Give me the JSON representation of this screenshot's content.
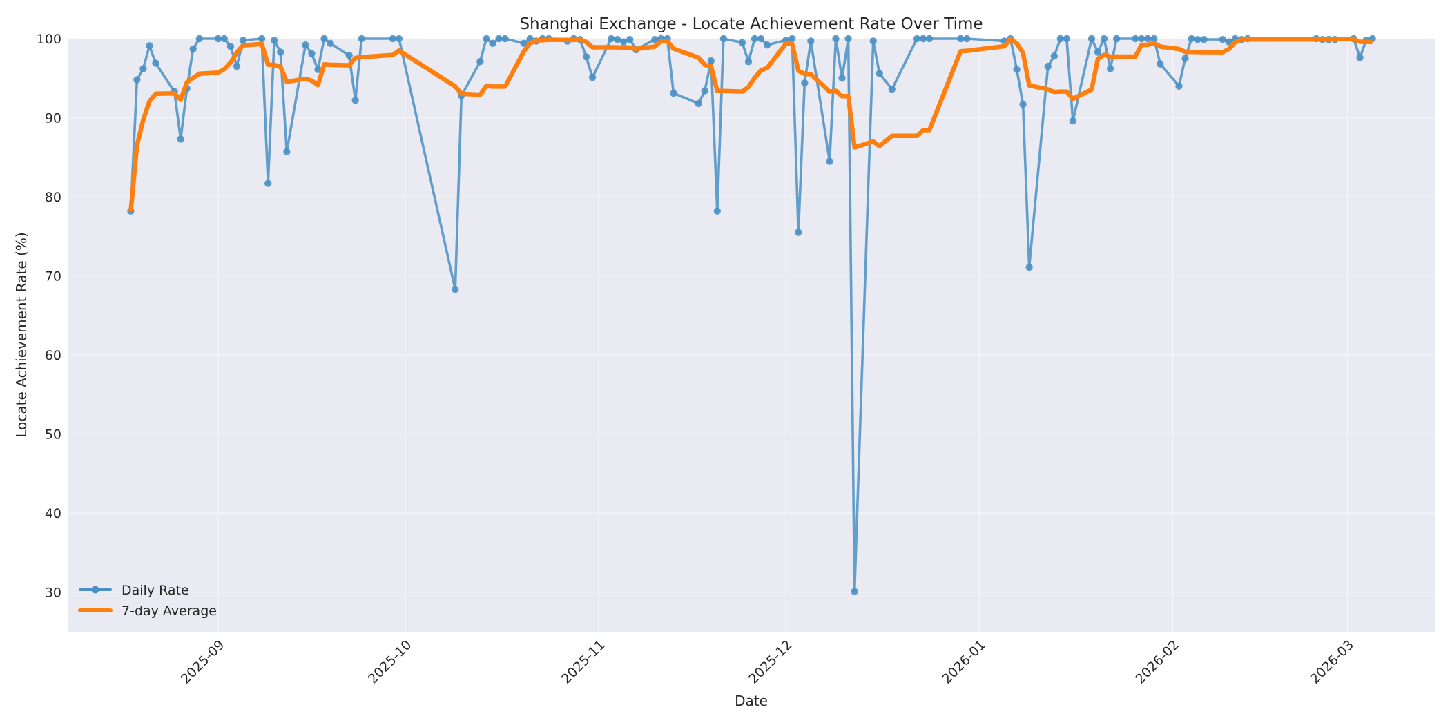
{
  "chart_data": {
    "type": "line",
    "title": "Shanghai Exchange - Locate Achievement Rate Over Time",
    "xlabel": "Date",
    "ylabel": "Locate Achievement Rate (%)",
    "ylim": [
      25,
      100
    ],
    "xlim": [
      "2025-08-08",
      "2026-03-15"
    ],
    "yticks": [
      30,
      40,
      50,
      60,
      70,
      80,
      90,
      100
    ],
    "xticks": [
      {
        "date": "2025-09-01",
        "label": "2025-09"
      },
      {
        "date": "2025-10-01",
        "label": "2025-10"
      },
      {
        "date": "2025-11-01",
        "label": "2025-11"
      },
      {
        "date": "2025-12-01",
        "label": "2025-12"
      },
      {
        "date": "2026-01-01",
        "label": "2026-01"
      },
      {
        "date": "2026-02-01",
        "label": "2026-02"
      },
      {
        "date": "2026-03-01",
        "label": "2026-03"
      }
    ],
    "grid": true,
    "legend_position": "lower left",
    "colors": {
      "daily": "#4a90c4",
      "average": "#ff7f0e",
      "plot_bg": "#eaeaf2",
      "grid": "#f5f5f8",
      "text": "#262626"
    },
    "x": [
      "2025-08-18",
      "2025-08-19",
      "2025-08-20",
      "2025-08-21",
      "2025-08-22",
      "2025-08-25",
      "2025-08-26",
      "2025-08-27",
      "2025-08-28",
      "2025-08-29",
      "2025-09-01",
      "2025-09-02",
      "2025-09-03",
      "2025-09-04",
      "2025-09-05",
      "2025-09-08",
      "2025-09-09",
      "2025-09-10",
      "2025-09-11",
      "2025-09-12",
      "2025-09-15",
      "2025-09-16",
      "2025-09-17",
      "2025-09-18",
      "2025-09-19",
      "2025-09-22",
      "2025-09-23",
      "2025-09-24",
      "2025-09-29",
      "2025-09-30",
      "2025-10-09",
      "2025-10-10",
      "2025-10-13",
      "2025-10-14",
      "2025-10-15",
      "2025-10-16",
      "2025-10-17",
      "2025-10-20",
      "2025-10-21",
      "2025-10-22",
      "2025-10-23",
      "2025-10-24",
      "2025-10-27",
      "2025-10-28",
      "2025-10-29",
      "2025-10-30",
      "2025-10-31",
      "2025-11-03",
      "2025-11-04",
      "2025-11-05",
      "2025-11-06",
      "2025-11-07",
      "2025-11-10",
      "2025-11-11",
      "2025-11-12",
      "2025-11-13",
      "2025-11-17",
      "2025-11-18",
      "2025-11-19",
      "2025-11-20",
      "2025-11-21",
      "2025-11-24",
      "2025-11-25",
      "2025-11-26",
      "2025-11-27",
      "2025-11-28",
      "2025-12-01",
      "2025-12-02",
      "2025-12-03",
      "2025-12-04",
      "2025-12-05",
      "2025-12-08",
      "2025-12-09",
      "2025-12-10",
      "2025-12-11",
      "2025-12-12",
      "2025-12-15",
      "2025-12-16",
      "2025-12-18",
      "2025-12-22",
      "2025-12-23",
      "2025-12-24",
      "2025-12-29",
      "2025-12-30",
      "2026-01-05",
      "2026-01-06",
      "2026-01-07",
      "2026-01-08",
      "2026-01-09",
      "2026-01-12",
      "2026-01-13",
      "2026-01-14",
      "2026-01-15",
      "2026-01-16",
      "2026-01-19",
      "2026-01-20",
      "2026-01-21",
      "2026-01-22",
      "2026-01-23",
      "2026-01-26",
      "2026-01-27",
      "2026-01-28",
      "2026-01-29",
      "2026-01-30",
      "2026-02-02",
      "2026-02-03",
      "2026-02-04",
      "2026-02-05",
      "2026-02-06",
      "2026-02-09",
      "2026-02-10",
      "2026-02-11",
      "2026-02-12",
      "2026-02-13",
      "2026-02-24",
      "2026-02-25",
      "2026-02-26",
      "2026-02-27",
      "2026-03-02",
      "2026-03-03",
      "2026-03-04",
      "2026-03-05"
    ],
    "series": [
      {
        "name": "Daily Rate",
        "style": "line-with-markers",
        "values": [
          78.2,
          94.8,
          96.2,
          99.1,
          96.9,
          93.3,
          87.3,
          93.7,
          98.7,
          100,
          100,
          100,
          99.0,
          96.5,
          99.8,
          100,
          81.7,
          99.8,
          98.3,
          85.7,
          99.2,
          98.1,
          96.1,
          100,
          99.4,
          97.9,
          92.2,
          100,
          100,
          100,
          68.3,
          92.8,
          97.1,
          100,
          99.4,
          100,
          100,
          99.4,
          100,
          99.7,
          100,
          100,
          99.7,
          100,
          99.9,
          97.7,
          95.1,
          100,
          99.9,
          99.6,
          99.9,
          98.6,
          99.9,
          100,
          100,
          93.1,
          91.8,
          93.4,
          97.2,
          78.2,
          100,
          99.5,
          97.1,
          100,
          100,
          99.2,
          99.8,
          100,
          75.5,
          94.4,
          99.7,
          84.5,
          100,
          95.0,
          100,
          30.1,
          99.7,
          95.6,
          93.6,
          100,
          100,
          100,
          100,
          100,
          99.7,
          100,
          96.1,
          91.7,
          71.1,
          96.5,
          97.8,
          100,
          100,
          89.6,
          100,
          98.3,
          100,
          96.2,
          100,
          100,
          100,
          100,
          100,
          96.8,
          94.0,
          97.5,
          100,
          99.9,
          99.9,
          99.9,
          99.6,
          100,
          99.9,
          100,
          100,
          99.9,
          99.9,
          99.9,
          100,
          97.6,
          99.8,
          100
        ]
      },
      {
        "name": "7-day Average",
        "style": "line",
        "values": [
          78.2,
          86.5,
          89.73,
          92.08,
          93.04,
          93.08,
          92.26,
          94.47,
          95.03,
          95.57,
          95.7,
          96.14,
          96.96,
          98.27,
          99.14,
          99.33,
          96.71,
          96.69,
          96.44,
          94.54,
          94.93,
          94.69,
          94.13,
          96.74,
          96.69,
          96.63,
          97.56,
          97.67,
          97.94,
          98.5,
          93.97,
          93.03,
          92.91,
          94.03,
          93.94,
          93.94,
          93.94,
          98.39,
          99.41,
          99.79,
          99.79,
          99.87,
          99.83,
          99.83,
          99.9,
          99.57,
          98.91,
          98.91,
          98.9,
          98.89,
          98.87,
          98.69,
          99.0,
          99.7,
          99.7,
          98.73,
          97.61,
          96.69,
          96.49,
          93.39,
          93.39,
          93.31,
          93.89,
          95.06,
          96.0,
          96.29,
          99.37,
          99.37,
          95.94,
          95.56,
          95.51,
          93.3,
          93.41,
          92.73,
          92.73,
          86.24,
          87.0,
          86.41,
          87.71,
          87.71,
          88.43,
          88.43,
          98.41,
          98.46,
          99.04,
          99.96,
          99.4,
          98.21,
          94.09,
          93.59,
          93.27,
          93.31,
          93.31,
          92.39,
          93.57,
          97.46,
          97.96,
          97.73,
          97.73,
          97.73,
          99.21,
          99.21,
          99.46,
          99.0,
          98.69,
          98.33,
          98.33,
          98.31,
          98.3,
          98.29,
          98.69,
          99.54,
          99.89,
          99.89,
          99.9,
          99.9,
          99.9,
          99.94,
          99.94,
          99.61,
          99.59,
          99.59
        ]
      }
    ]
  }
}
